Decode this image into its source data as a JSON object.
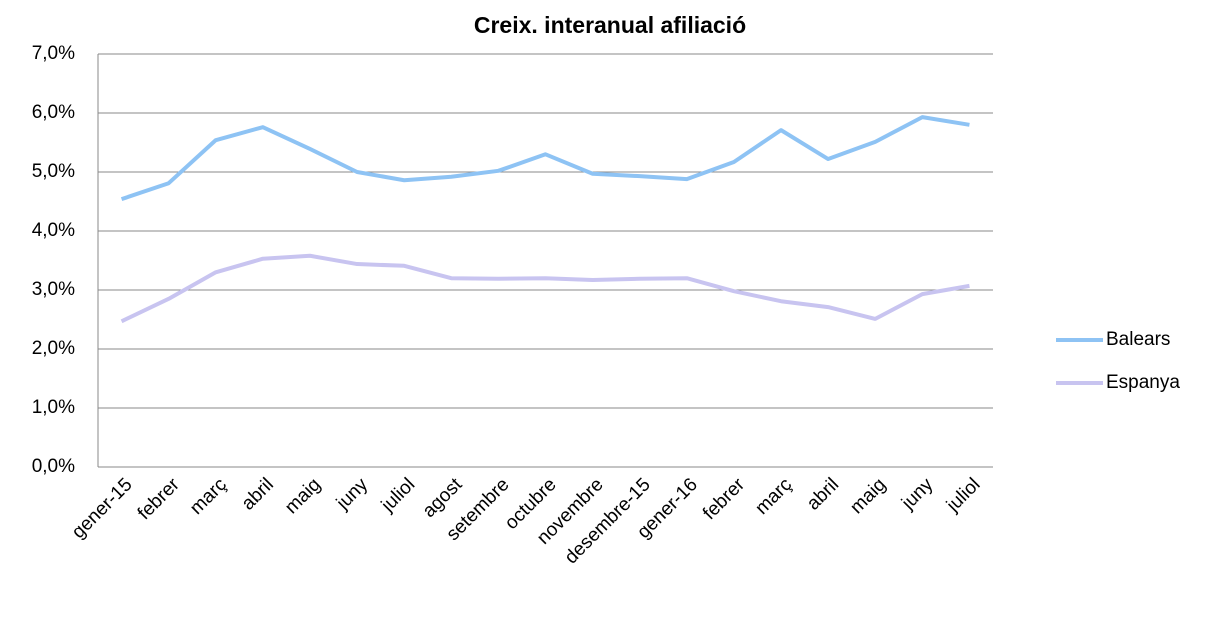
{
  "chart_data": {
    "type": "line",
    "title": "Creix. interanual afiliació",
    "categories": [
      "gener-15",
      "febrer",
      "març",
      "abril",
      "maig",
      "juny",
      "juliol",
      "agost",
      "setembre",
      "octubre",
      "novembre",
      "desembre-15",
      "gener-16",
      "febrer",
      "març",
      "abril",
      "maig",
      "juny",
      "juliol"
    ],
    "series": [
      {
        "name": "Balears",
        "color": "#8ec3f4",
        "values": [
          4.54,
          4.81,
          5.54,
          5.76,
          5.39,
          5.0,
          4.86,
          4.92,
          5.02,
          5.3,
          4.97,
          4.93,
          4.88,
          5.17,
          5.71,
          5.22,
          5.51,
          5.93,
          5.8
        ]
      },
      {
        "name": "Espanya",
        "color": "#c8c4f0",
        "values": [
          2.47,
          2.85,
          3.3,
          3.53,
          3.58,
          3.44,
          3.41,
          3.2,
          3.19,
          3.2,
          3.17,
          3.19,
          3.2,
          2.98,
          2.81,
          2.71,
          2.51,
          2.93,
          3.07
        ]
      }
    ],
    "ylim": [
      0,
      7
    ],
    "yticks": [
      {
        "value": 0,
        "label": "0,0%"
      },
      {
        "value": 1,
        "label": "1,0%"
      },
      {
        "value": 2,
        "label": "2,0%"
      },
      {
        "value": 3,
        "label": "3,0%"
      },
      {
        "value": 4,
        "label": "4,0%"
      },
      {
        "value": 5,
        "label": "5,0%"
      },
      {
        "value": 6,
        "label": "6,0%"
      },
      {
        "value": 7,
        "label": "7,0%"
      }
    ],
    "grid": true,
    "legend": "right"
  }
}
